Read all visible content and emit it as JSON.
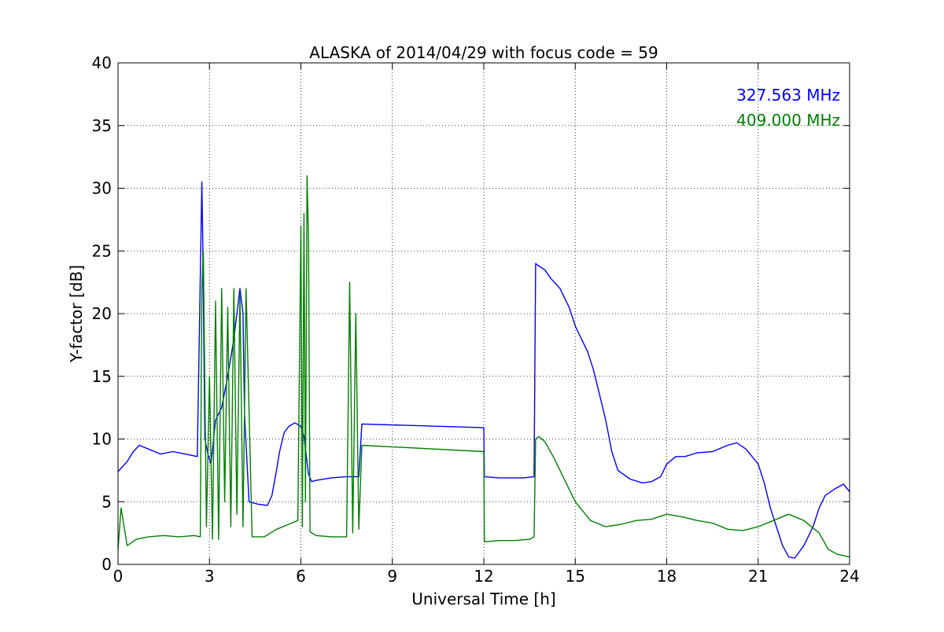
{
  "chart_data": {
    "type": "line",
    "title": "ALASKA of 2014/04/29 with focus code = 59",
    "xlabel": "Universal Time [h]",
    "ylabel": "Y-factor [dB]",
    "xlim": [
      0,
      24
    ],
    "ylim": [
      0,
      40
    ],
    "xticks": [
      "0",
      "3",
      "6",
      "9",
      "12",
      "15",
      "18",
      "21",
      "24"
    ],
    "yticks": [
      "0",
      "5",
      "10",
      "15",
      "20",
      "25",
      "30",
      "35",
      "40"
    ],
    "grid": true,
    "legend_position": "top-right",
    "series": [
      {
        "name": "327.563 MHz",
        "color": "#0000ff",
        "x": [
          0.0,
          0.3,
          0.5,
          0.7,
          1.0,
          1.4,
          1.8,
          2.2,
          2.6,
          2.75,
          2.78,
          2.85,
          2.95,
          3.05,
          3.2,
          3.4,
          3.6,
          3.8,
          4.0,
          4.1,
          4.15,
          4.3,
          4.6,
          4.9,
          5.05,
          5.2,
          5.3,
          5.45,
          5.6,
          5.8,
          6.0,
          6.1,
          6.25,
          6.35,
          6.5,
          7.0,
          7.5,
          7.9,
          8.0,
          12.0,
          12.02,
          12.5,
          13.0,
          13.3,
          13.65,
          13.7,
          13.8,
          14.0,
          14.2,
          14.5,
          14.8,
          15.0,
          15.2,
          15.4,
          15.6,
          15.8,
          16.0,
          16.2,
          16.4,
          16.8,
          17.2,
          17.5,
          17.8,
          18.0,
          18.3,
          18.6,
          19.0,
          19.5,
          20.0,
          20.3,
          20.6,
          21.0,
          21.2,
          21.4,
          21.6,
          21.8,
          22.0,
          22.2,
          22.5,
          22.8,
          23.0,
          23.2,
          23.5,
          23.8,
          24.0
        ],
        "values": [
          7.4,
          8.2,
          9.0,
          9.5,
          9.2,
          8.8,
          9.0,
          8.8,
          8.6,
          30.5,
          26.0,
          10.0,
          8.8,
          8.0,
          11.5,
          12.5,
          15.0,
          18.0,
          22.0,
          20.0,
          12.0,
          5.0,
          4.8,
          4.7,
          5.5,
          7.5,
          9.0,
          10.5,
          11.0,
          11.3,
          11.0,
          10.2,
          7.2,
          6.6,
          6.7,
          6.9,
          7.0,
          7.0,
          11.2,
          10.9,
          7.0,
          6.9,
          6.9,
          6.9,
          7.0,
          24.0,
          23.8,
          23.5,
          22.8,
          22.0,
          20.5,
          19.0,
          18.0,
          17.0,
          15.5,
          13.5,
          11.5,
          9.0,
          7.5,
          6.8,
          6.5,
          6.6,
          7.0,
          8.0,
          8.6,
          8.6,
          8.9,
          9.0,
          9.5,
          9.7,
          9.2,
          8.0,
          6.5,
          4.5,
          3.0,
          1.5,
          0.6,
          0.5,
          1.5,
          3.0,
          4.5,
          5.5,
          6.0,
          6.4,
          5.8
        ]
      },
      {
        "name": "409.000 MHz",
        "color": "#008000",
        "x": [
          0.0,
          0.1,
          0.3,
          0.6,
          1.0,
          1.5,
          2.0,
          2.5,
          2.7,
          2.75,
          2.8,
          2.9,
          3.0,
          3.1,
          3.2,
          3.3,
          3.4,
          3.5,
          3.6,
          3.7,
          3.8,
          3.9,
          4.0,
          4.1,
          4.2,
          4.4,
          4.8,
          5.2,
          5.6,
          5.9,
          6.0,
          6.05,
          6.1,
          6.15,
          6.2,
          6.25,
          6.3,
          6.5,
          7.0,
          7.5,
          7.6,
          7.7,
          7.8,
          7.9,
          8.0,
          12.0,
          12.02,
          12.5,
          13.0,
          13.5,
          13.65,
          13.7,
          13.8,
          14.0,
          14.3,
          14.6,
          15.0,
          15.5,
          16.0,
          16.5,
          17.0,
          17.5,
          18.0,
          18.5,
          19.0,
          19.5,
          20.0,
          20.5,
          21.0,
          21.5,
          22.0,
          22.5,
          23.0,
          23.3,
          23.6,
          24.0
        ],
        "values": [
          1.2,
          4.5,
          1.5,
          2.0,
          2.2,
          2.3,
          2.2,
          2.3,
          2.2,
          22.0,
          25.0,
          3.0,
          15.0,
          2.0,
          21.0,
          2.0,
          22.0,
          5.0,
          20.5,
          3.0,
          22.0,
          4.0,
          21.5,
          3.0,
          22.0,
          2.2,
          2.2,
          2.8,
          3.2,
          3.5,
          27.0,
          3.0,
          28.0,
          5.0,
          31.0,
          26.0,
          2.6,
          2.3,
          2.2,
          2.2,
          22.5,
          2.5,
          20.0,
          2.8,
          9.5,
          9.0,
          1.8,
          1.9,
          1.9,
          2.0,
          2.2,
          10.0,
          10.2,
          9.8,
          8.5,
          7.0,
          5.0,
          3.5,
          3.0,
          3.2,
          3.5,
          3.6,
          4.0,
          3.8,
          3.5,
          3.3,
          2.8,
          2.7,
          3.0,
          3.5,
          4.0,
          3.5,
          2.5,
          1.2,
          0.8,
          0.6
        ]
      }
    ]
  }
}
